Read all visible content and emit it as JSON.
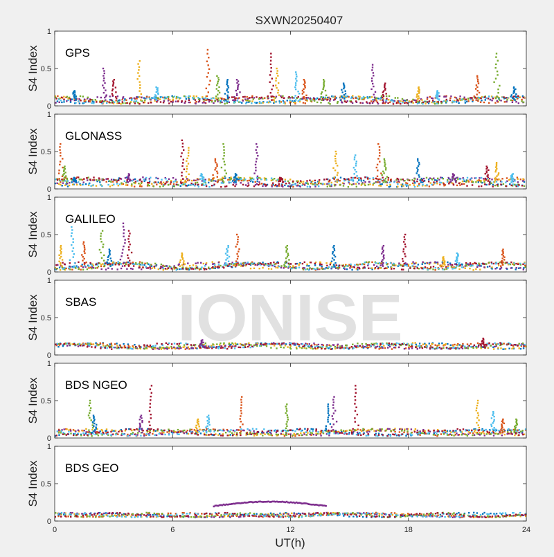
{
  "figure": {
    "title": "SXWN20250407",
    "xlabel": "UT(h)",
    "xticks": [
      "0",
      "6",
      "12",
      "18",
      "24"
    ],
    "watermark": "IONISE"
  },
  "series_colors": [
    "#0072bd",
    "#d95319",
    "#edb120",
    "#7e2f8e",
    "#77ac30",
    "#4dbeee",
    "#a2142f"
  ],
  "chart_data": [
    {
      "type": "scatter",
      "panel": "GPS",
      "ylabel": "S4 Index",
      "yticks": [
        "0",
        "0.5",
        "1"
      ],
      "xlim": [
        0,
        24
      ],
      "ylim": [
        0,
        1
      ],
      "baseline": {
        "low": 0.03,
        "high": 0.13
      },
      "spikes": [
        [
          1.0,
          0.2
        ],
        [
          2.5,
          0.5
        ],
        [
          3.0,
          0.35
        ],
        [
          4.3,
          0.6
        ],
        [
          5.2,
          0.25
        ],
        [
          7.8,
          0.75
        ],
        [
          8.3,
          0.4
        ],
        [
          8.8,
          0.35
        ],
        [
          9.3,
          0.35
        ],
        [
          11.0,
          0.7
        ],
        [
          11.3,
          0.5
        ],
        [
          12.3,
          0.45
        ],
        [
          12.7,
          0.35
        ],
        [
          13.7,
          0.35
        ],
        [
          14.7,
          0.3
        ],
        [
          16.2,
          0.55
        ],
        [
          16.8,
          0.3
        ],
        [
          18.5,
          0.25
        ],
        [
          19.5,
          0.2
        ],
        [
          21.5,
          0.4
        ],
        [
          22.5,
          0.7
        ],
        [
          23.4,
          0.25
        ]
      ],
      "grid": false
    },
    {
      "type": "scatter",
      "panel": "GLONASS",
      "ylabel": "S4 Index",
      "yticks": [
        "0",
        "0.5",
        "1"
      ],
      "xlim": [
        0,
        24
      ],
      "ylim": [
        0,
        1
      ],
      "baseline": {
        "low": 0.03,
        "high": 0.15
      },
      "spikes": [
        [
          0.3,
          0.6
        ],
        [
          0.5,
          0.3
        ],
        [
          1.0,
          0.15
        ],
        [
          3.8,
          0.2
        ],
        [
          6.5,
          0.65
        ],
        [
          6.8,
          0.55
        ],
        [
          7.5,
          0.2
        ],
        [
          8.2,
          0.4
        ],
        [
          8.6,
          0.6
        ],
        [
          9.2,
          0.2
        ],
        [
          10.3,
          0.6
        ],
        [
          11.5,
          0.15
        ],
        [
          14.3,
          0.5
        ],
        [
          15.3,
          0.45
        ],
        [
          16.5,
          0.6
        ],
        [
          16.8,
          0.4
        ],
        [
          18.5,
          0.4
        ],
        [
          20.3,
          0.2
        ],
        [
          22.0,
          0.3
        ],
        [
          22.5,
          0.35
        ],
        [
          23.3,
          0.2
        ]
      ],
      "grid": false
    },
    {
      "type": "scatter",
      "panel": "GALILEO",
      "ylabel": "S4 Index",
      "yticks": [
        "0",
        "0.5",
        "1"
      ],
      "xlim": [
        0,
        24
      ],
      "ylim": [
        0,
        1
      ],
      "baseline": {
        "low": 0.03,
        "high": 0.13
      },
      "spikes": [
        [
          0.3,
          0.35
        ],
        [
          0.9,
          0.6
        ],
        [
          1.5,
          0.4
        ],
        [
          2.4,
          0.55
        ],
        [
          2.8,
          0.3
        ],
        [
          3.5,
          0.65
        ],
        [
          3.8,
          0.55
        ],
        [
          6.5,
          0.25
        ],
        [
          8.8,
          0.35
        ],
        [
          9.3,
          0.5
        ],
        [
          11.8,
          0.35
        ],
        [
          14.2,
          0.35
        ],
        [
          16.7,
          0.35
        ],
        [
          17.8,
          0.5
        ],
        [
          19.8,
          0.2
        ],
        [
          20.5,
          0.25
        ],
        [
          22.8,
          0.3
        ]
      ],
      "grid": false
    },
    {
      "type": "scatter",
      "panel": "SBAS",
      "ylabel": "S4 Index",
      "yticks": [
        "0",
        "0.5",
        "1"
      ],
      "xlim": [
        0,
        24
      ],
      "ylim": [
        0,
        1
      ],
      "baseline": {
        "low": 0.08,
        "high": 0.16
      },
      "spikes": [
        [
          7.5,
          0.2
        ],
        [
          21.8,
          0.22
        ]
      ],
      "grid": false
    },
    {
      "type": "scatter",
      "panel": "BDS NGEO",
      "ylabel": "S4 Index",
      "yticks": [
        "0",
        "0.5",
        "1"
      ],
      "xlim": [
        0,
        24
      ],
      "ylim": [
        0,
        1
      ],
      "baseline": {
        "low": 0.03,
        "high": 0.12
      },
      "spikes": [
        [
          1.8,
          0.5
        ],
        [
          2.0,
          0.3
        ],
        [
          4.4,
          0.3
        ],
        [
          4.9,
          0.7
        ],
        [
          7.3,
          0.25
        ],
        [
          7.8,
          0.3
        ],
        [
          9.5,
          0.55
        ],
        [
          11.8,
          0.45
        ],
        [
          13.9,
          0.45
        ],
        [
          14.2,
          0.55
        ],
        [
          15.3,
          0.7
        ],
        [
          21.5,
          0.5
        ],
        [
          22.3,
          0.35
        ],
        [
          22.8,
          0.25
        ],
        [
          23.5,
          0.25
        ]
      ],
      "grid": false
    },
    {
      "type": "scatter",
      "panel": "BDS GEO",
      "ylabel": "S4 Index",
      "yticks": [
        "0",
        "0.5",
        "1"
      ],
      "xlim": [
        0,
        24
      ],
      "ylim": [
        0,
        1
      ],
      "baseline": {
        "low": 0.05,
        "high": 0.11
      },
      "arc": {
        "x_start": 8.1,
        "x_end": 13.8,
        "y_ends": 0.2,
        "y_peak": 0.26
      },
      "spikes": [],
      "grid": false
    }
  ]
}
